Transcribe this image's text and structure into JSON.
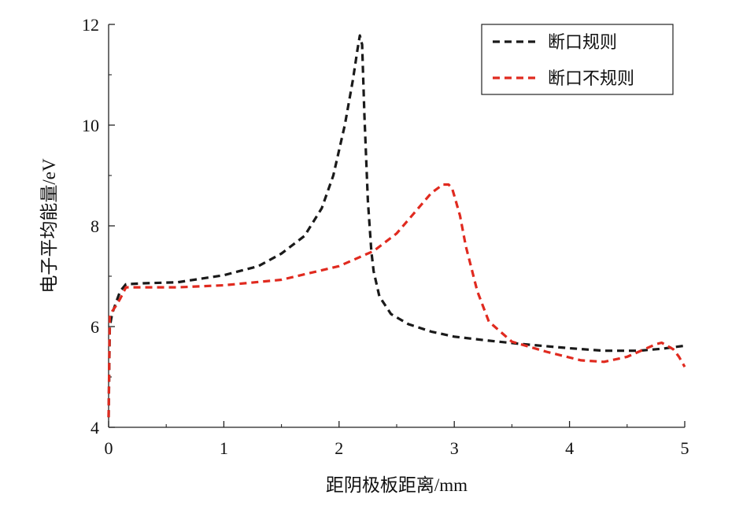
{
  "chart_data": {
    "type": "line",
    "xlabel": "距阴极板距离/mm",
    "ylabel": "电子平均能量/eV",
    "xlim": [
      0,
      5
    ],
    "ylim": [
      4,
      12
    ],
    "xticks": [
      0,
      1,
      2,
      3,
      4,
      5
    ],
    "yticks": [
      4,
      6,
      8,
      10,
      12
    ],
    "grid": false,
    "legend_position": "top-right",
    "series": [
      {
        "name": "断口规则",
        "color": "#1a1a1a",
        "line_style": "dashed",
        "x": [
          0,
          0.01,
          0.03,
          0.06,
          0.1,
          0.15,
          0.3,
          0.6,
          1.0,
          1.3,
          1.5,
          1.7,
          1.85,
          1.95,
          2.05,
          2.12,
          2.16,
          2.18,
          2.2,
          2.22,
          2.25,
          2.28,
          2.3,
          2.35,
          2.45,
          2.6,
          2.8,
          3.0,
          3.3,
          3.6,
          4.0,
          4.3,
          4.6,
          4.8,
          5.0
        ],
        "y": [
          4.2,
          6.0,
          6.25,
          6.45,
          6.7,
          6.84,
          6.86,
          6.88,
          7.02,
          7.2,
          7.45,
          7.8,
          8.35,
          9.0,
          10.0,
          10.9,
          11.5,
          11.78,
          11.6,
          10.2,
          8.5,
          7.5,
          7.1,
          6.6,
          6.25,
          6.05,
          5.9,
          5.8,
          5.72,
          5.65,
          5.57,
          5.52,
          5.52,
          5.56,
          5.62
        ]
      },
      {
        "name": "断口不规则",
        "color": "#e02a1f",
        "line_style": "dashed",
        "x": [
          0,
          0.01,
          0.03,
          0.06,
          0.1,
          0.15,
          0.3,
          0.6,
          1.0,
          1.5,
          2.0,
          2.3,
          2.5,
          2.65,
          2.8,
          2.9,
          2.95,
          2.98,
          3.0,
          3.05,
          3.1,
          3.2,
          3.3,
          3.5,
          3.8,
          4.1,
          4.3,
          4.5,
          4.65,
          4.75,
          4.8,
          4.9,
          4.95,
          5.0
        ],
        "y": [
          4.2,
          6.2,
          6.3,
          6.4,
          6.55,
          6.78,
          6.78,
          6.78,
          6.82,
          6.93,
          7.2,
          7.5,
          7.85,
          8.25,
          8.65,
          8.82,
          8.82,
          8.75,
          8.6,
          8.2,
          7.6,
          6.7,
          6.1,
          5.7,
          5.5,
          5.33,
          5.3,
          5.4,
          5.55,
          5.65,
          5.68,
          5.55,
          5.4,
          5.2
        ]
      }
    ]
  }
}
